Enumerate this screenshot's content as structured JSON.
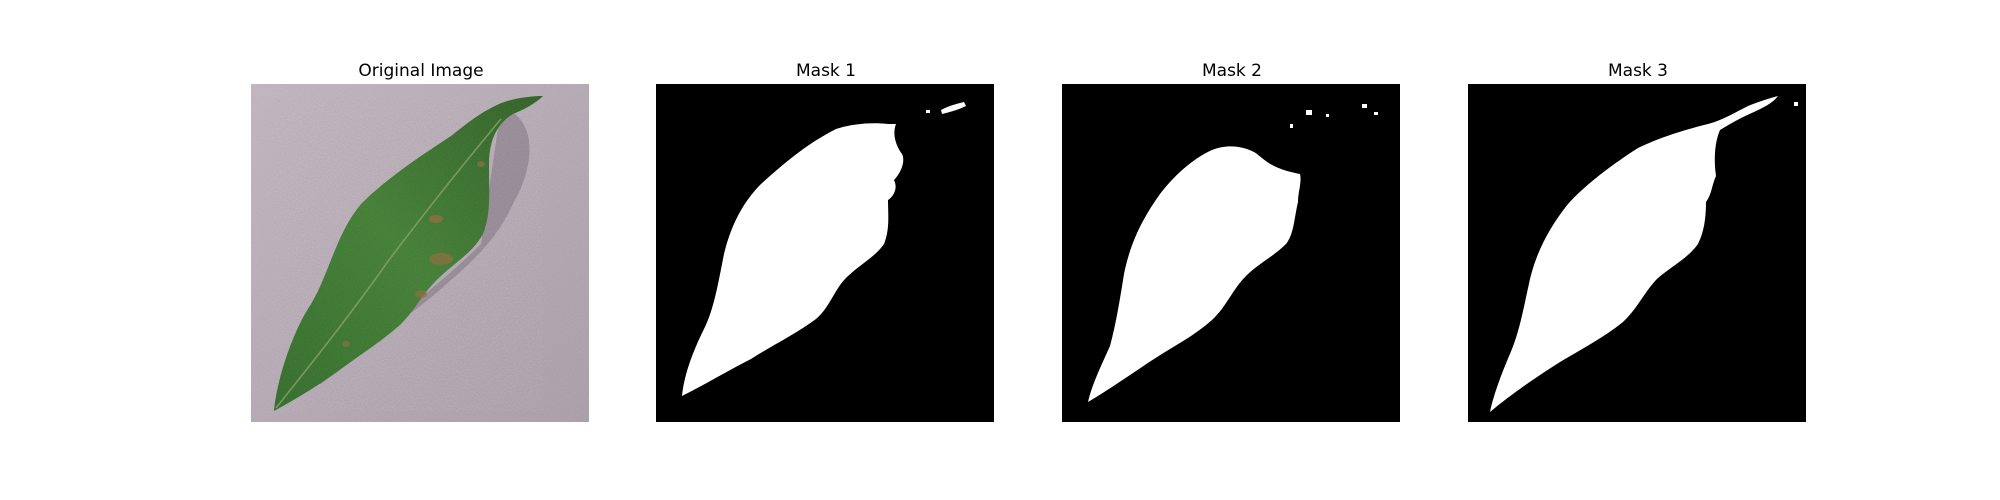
{
  "figure": {
    "panels": [
      {
        "title": "Original Image",
        "kind": "photo",
        "subject": "leaf-photo"
      },
      {
        "title": "Mask 1",
        "kind": "mask",
        "subject": "leaf-mask"
      },
      {
        "title": "Mask 2",
        "kind": "mask",
        "subject": "leaf-mask"
      },
      {
        "title": "Mask 3",
        "kind": "mask",
        "subject": "leaf-mask"
      }
    ],
    "colors": {
      "background": "#ffffff",
      "mask_background": "#000000",
      "mask_foreground": "#ffffff",
      "photo_background": "#b7aab3",
      "leaf_green": "#3f7a2e",
      "leaf_dark": "#2b5a22",
      "leaf_shadow": "#6f6470",
      "leaf_spot": "#8a6a3a"
    }
  }
}
